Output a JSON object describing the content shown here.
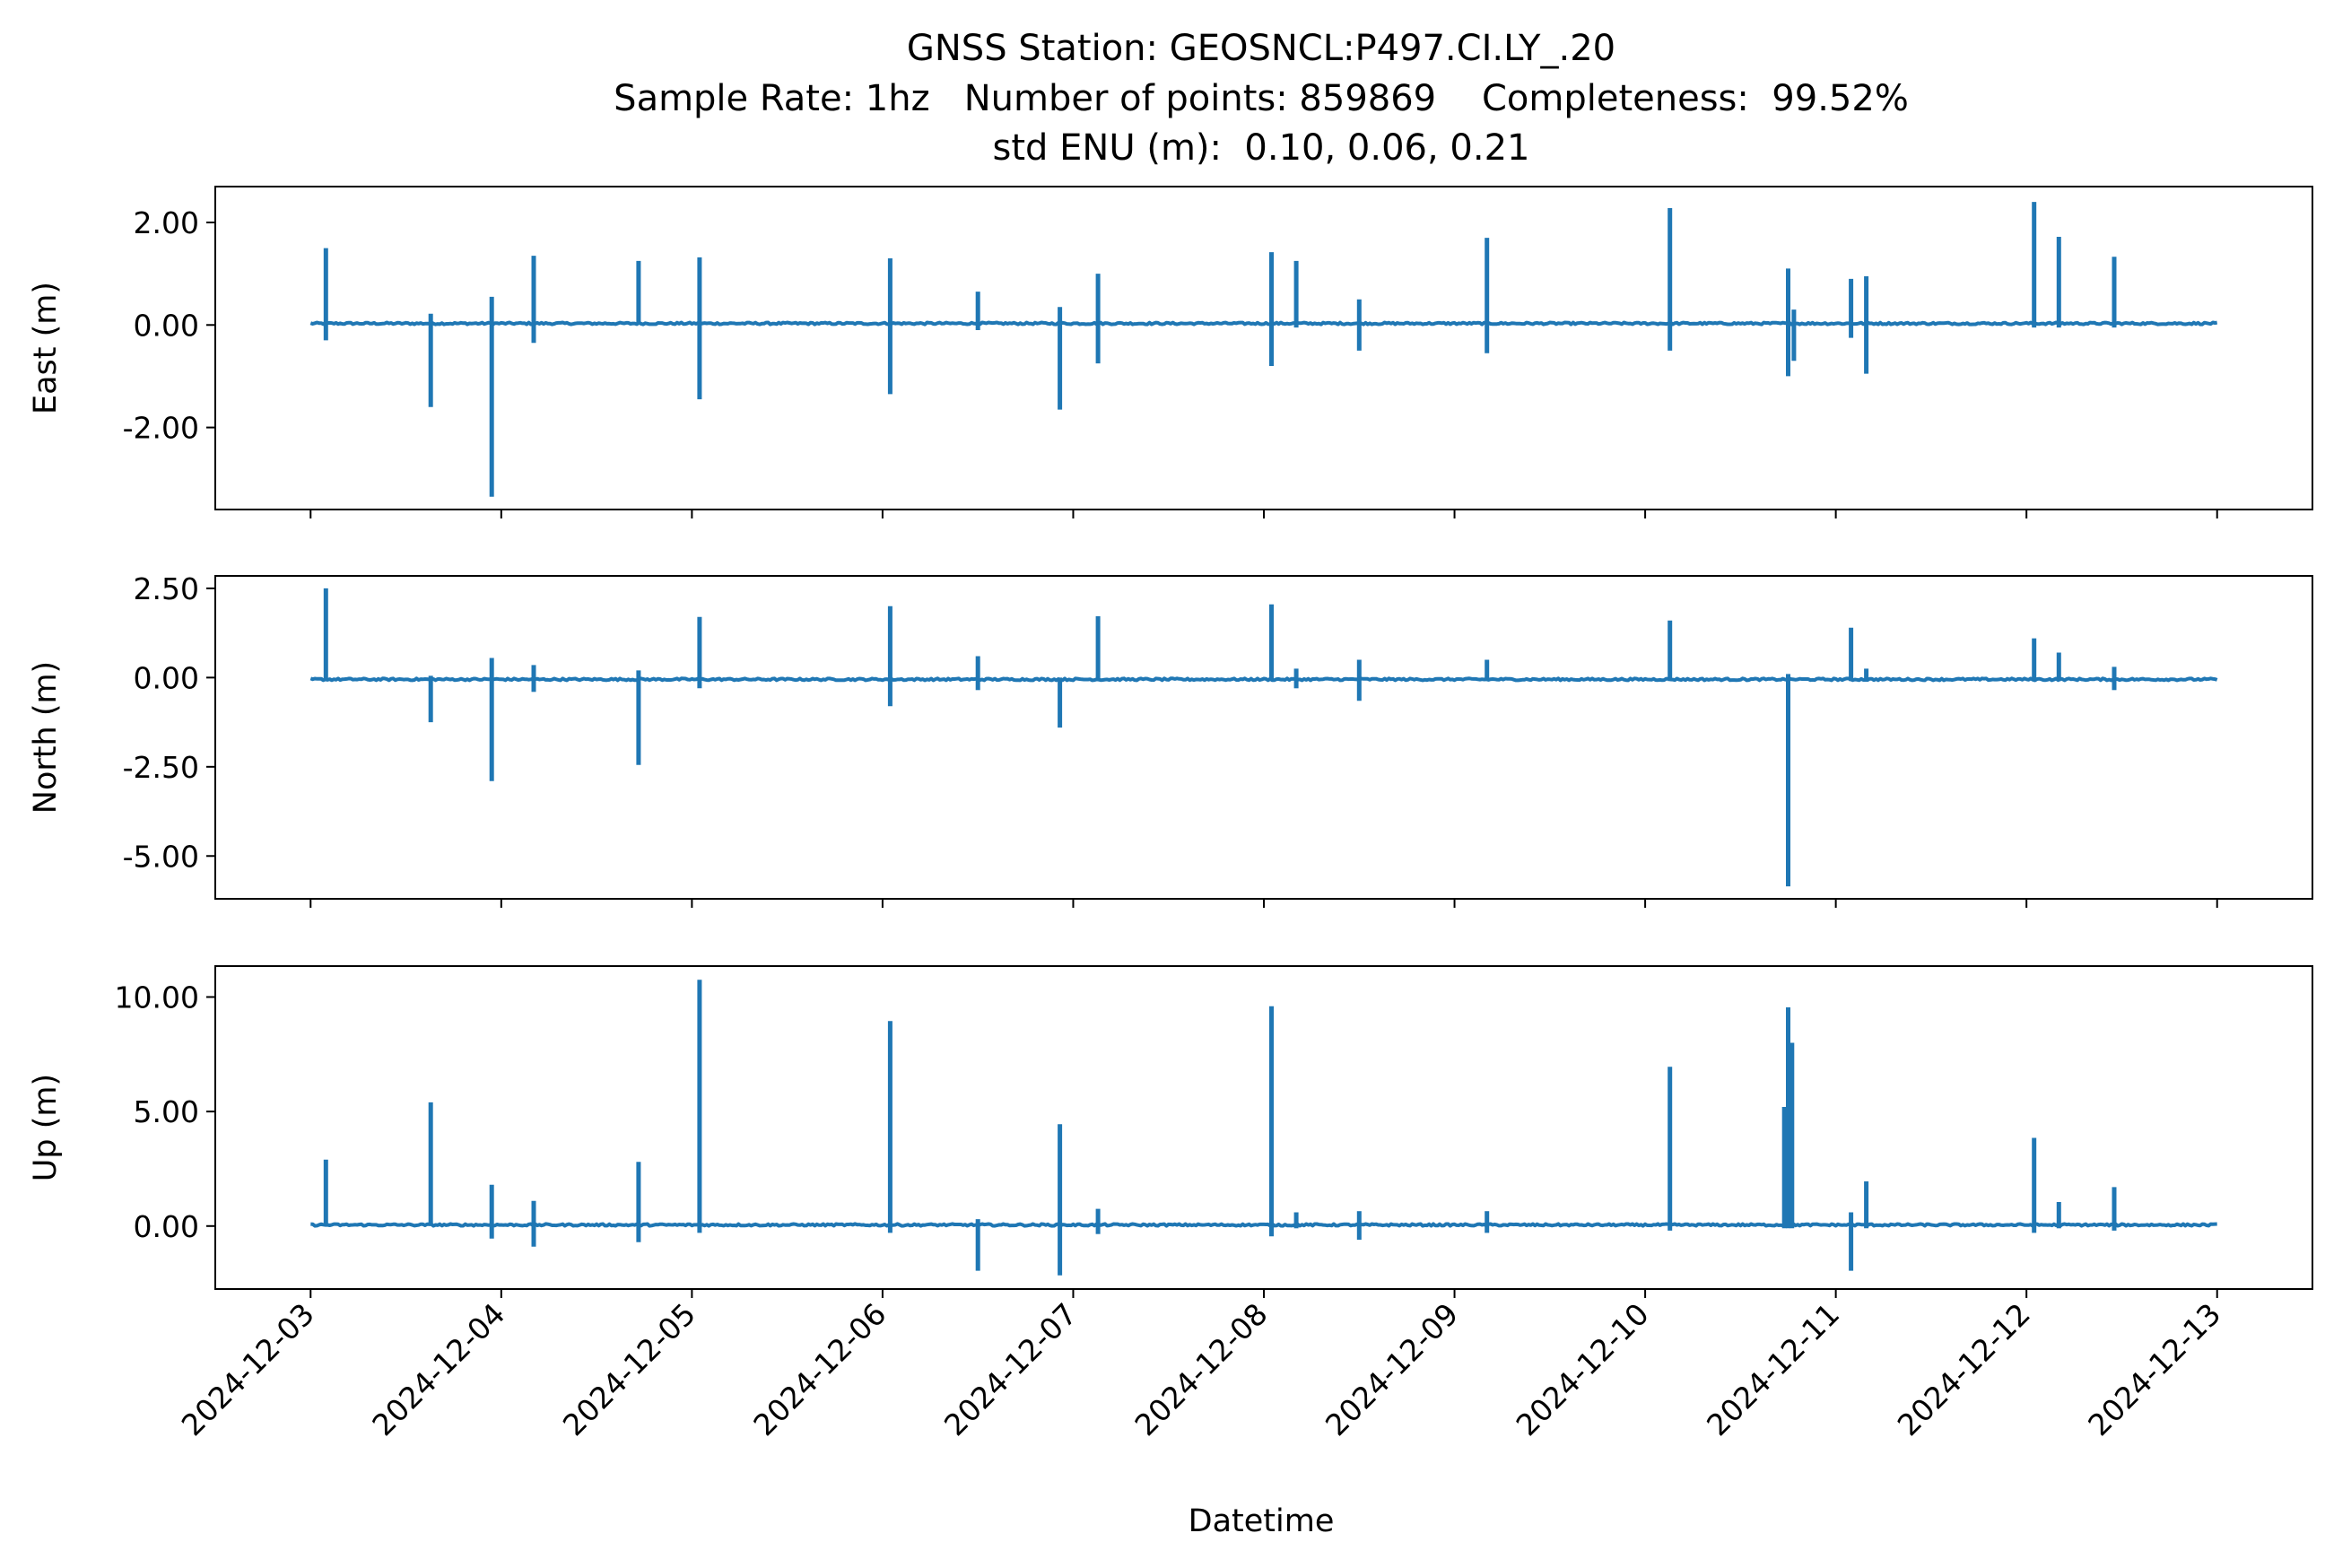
{
  "chart_data": {
    "type": "line",
    "title_lines": [
      "GNSS Station: GEOSNCL:P497.CI.LY_.20",
      "Sample Rate: 1hz   Number of points: 859869    Completeness:  99.52%",
      "std ENU (m):  0.10, 0.06, 0.21"
    ],
    "xlabel": "Datetime",
    "x_ticks": [
      "2024-12-03",
      "2024-12-04",
      "2024-12-05",
      "2024-12-06",
      "2024-12-07",
      "2024-12-08",
      "2024-12-09",
      "2024-12-10",
      "2024-12-11",
      "2024-12-12",
      "2024-12-13"
    ],
    "xlim_days": [
      -0.5,
      10.5
    ],
    "line_color": "#1f77b4",
    "panels": [
      {
        "name": "east",
        "ylabel": "East (m)",
        "ylim": [
          -3.6,
          2.7
        ],
        "yticks": [
          2.0,
          0.0,
          -2.0
        ],
        "ytick_labels": [
          "2.00",
          "0.00",
          "-2.00"
        ],
        "baseline": 0.03,
        "spikes": [
          {
            "t": 0.08,
            "hi": 1.5,
            "lo": -0.3
          },
          {
            "t": 0.63,
            "hi": 0.22,
            "lo": -1.6
          },
          {
            "t": 0.95,
            "hi": 0.55,
            "lo": -3.35
          },
          {
            "t": 1.17,
            "hi": 1.35,
            "lo": -0.35
          },
          {
            "t": 1.72,
            "hi": 1.25,
            "lo": 0.05
          },
          {
            "t": 2.04,
            "hi": 1.32,
            "lo": -1.45
          },
          {
            "t": 3.04,
            "hi": 1.3,
            "lo": -1.35
          },
          {
            "t": 3.5,
            "hi": 0.65,
            "lo": -0.1
          },
          {
            "t": 3.93,
            "hi": 0.35,
            "lo": -1.65
          },
          {
            "t": 4.13,
            "hi": 1.0,
            "lo": -0.75
          },
          {
            "t": 5.04,
            "hi": 1.42,
            "lo": -0.8
          },
          {
            "t": 5.17,
            "hi": 1.25,
            "lo": -0.05
          },
          {
            "t": 5.5,
            "hi": 0.5,
            "lo": -0.5
          },
          {
            "t": 6.17,
            "hi": 1.7,
            "lo": -0.55
          },
          {
            "t": 7.13,
            "hi": 2.28,
            "lo": -0.5
          },
          {
            "t": 7.75,
            "hi": 1.1,
            "lo": -1.0
          },
          {
            "t": 7.78,
            "hi": 0.3,
            "lo": -0.7
          },
          {
            "t": 8.08,
            "hi": 0.9,
            "lo": -0.25
          },
          {
            "t": 8.16,
            "hi": 0.95,
            "lo": -0.95
          },
          {
            "t": 9.04,
            "hi": 2.4,
            "lo": -0.05
          },
          {
            "t": 9.17,
            "hi": 1.72,
            "lo": -0.05
          },
          {
            "t": 9.46,
            "hi": 1.33,
            "lo": -0.05
          }
        ]
      },
      {
        "name": "north",
        "ylabel": "North (m)",
        "ylim": [
          -6.2,
          2.85
        ],
        "yticks": [
          2.5,
          0.0,
          -2.5,
          -5.0
        ],
        "ytick_labels": [
          "2.50",
          "0.00",
          "-2.50",
          "-5.00"
        ],
        "baseline": -0.05,
        "spikes": [
          {
            "t": 0.08,
            "hi": 2.5,
            "lo": -0.1
          },
          {
            "t": 0.63,
            "hi": 0.05,
            "lo": -1.25
          },
          {
            "t": 0.95,
            "hi": 0.55,
            "lo": -2.9
          },
          {
            "t": 1.17,
            "hi": 0.35,
            "lo": -0.4
          },
          {
            "t": 1.72,
            "hi": 0.2,
            "lo": -2.45
          },
          {
            "t": 2.04,
            "hi": 1.7,
            "lo": -0.3
          },
          {
            "t": 3.04,
            "hi": 2.0,
            "lo": -0.8
          },
          {
            "t": 3.5,
            "hi": 0.6,
            "lo": -0.35
          },
          {
            "t": 3.93,
            "hi": 0.0,
            "lo": -1.4
          },
          {
            "t": 4.13,
            "hi": 1.72,
            "lo": -0.1
          },
          {
            "t": 5.04,
            "hi": 2.05,
            "lo": -0.1
          },
          {
            "t": 5.17,
            "hi": 0.25,
            "lo": -0.3
          },
          {
            "t": 5.5,
            "hi": 0.5,
            "lo": -0.65
          },
          {
            "t": 6.17,
            "hi": 0.5,
            "lo": -0.1
          },
          {
            "t": 7.13,
            "hi": 1.6,
            "lo": -0.1
          },
          {
            "t": 7.75,
            "hi": 0.1,
            "lo": -5.85
          },
          {
            "t": 8.08,
            "hi": 1.4,
            "lo": -0.1
          },
          {
            "t": 8.16,
            "hi": 0.25,
            "lo": -0.1
          },
          {
            "t": 9.04,
            "hi": 1.1,
            "lo": -0.1
          },
          {
            "t": 9.17,
            "hi": 0.7,
            "lo": -0.1
          },
          {
            "t": 9.46,
            "hi": 0.3,
            "lo": -0.35
          }
        ]
      },
      {
        "name": "up",
        "ylabel": "Up (m)",
        "ylim": [
          -2.75,
          11.35
        ],
        "yticks": [
          10.0,
          5.0,
          0.0
        ],
        "ytick_labels": [
          "10.00",
          "5.00",
          "0.00"
        ],
        "baseline": 0.05,
        "spikes": [
          {
            "t": 0.08,
            "hi": 2.9,
            "lo": 0.0
          },
          {
            "t": 0.63,
            "hi": 5.4,
            "lo": 0.0
          },
          {
            "t": 0.95,
            "hi": 1.8,
            "lo": -0.55
          },
          {
            "t": 1.17,
            "hi": 1.1,
            "lo": -0.9
          },
          {
            "t": 1.72,
            "hi": 2.8,
            "lo": -0.7
          },
          {
            "t": 2.04,
            "hi": 10.75,
            "lo": -0.3
          },
          {
            "t": 3.04,
            "hi": 8.95,
            "lo": -0.3
          },
          {
            "t": 3.5,
            "hi": 0.3,
            "lo": -1.95
          },
          {
            "t": 3.93,
            "hi": 4.45,
            "lo": -2.15
          },
          {
            "t": 4.13,
            "hi": 0.75,
            "lo": -0.35
          },
          {
            "t": 5.04,
            "hi": 9.6,
            "lo": -0.45
          },
          {
            "t": 5.17,
            "hi": 0.6,
            "lo": -0.1
          },
          {
            "t": 5.5,
            "hi": 0.65,
            "lo": -0.6
          },
          {
            "t": 6.17,
            "hi": 0.65,
            "lo": -0.3
          },
          {
            "t": 7.13,
            "hi": 6.95,
            "lo": -0.2
          },
          {
            "t": 7.73,
            "hi": 5.2,
            "lo": -0.1
          },
          {
            "t": 7.75,
            "hi": 9.55,
            "lo": -0.1
          },
          {
            "t": 7.77,
            "hi": 8.0,
            "lo": -0.1
          },
          {
            "t": 8.08,
            "hi": 0.6,
            "lo": -1.95
          },
          {
            "t": 8.16,
            "hi": 1.95,
            "lo": -0.1
          },
          {
            "t": 9.04,
            "hi": 3.85,
            "lo": -0.3
          },
          {
            "t": 9.17,
            "hi": 1.05,
            "lo": -0.1
          },
          {
            "t": 9.46,
            "hi": 1.7,
            "lo": -0.2
          }
        ]
      }
    ]
  }
}
